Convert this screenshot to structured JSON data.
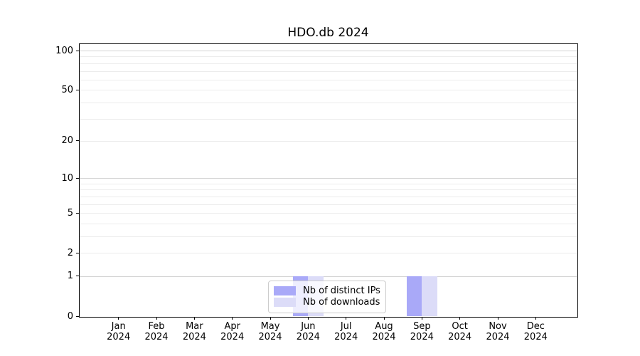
{
  "chart_data": {
    "type": "bar",
    "title": "HDO.db 2024",
    "categories": [
      "Jan",
      "Feb",
      "Mar",
      "Apr",
      "May",
      "Jun",
      "Jul",
      "Aug",
      "Sep",
      "Oct",
      "Nov",
      "Dec"
    ],
    "category_year": "2024",
    "series": [
      {
        "name": "Nb of distinct IPs",
        "color": "#a9a9f8",
        "values": [
          0,
          0,
          0,
          0,
          0,
          1,
          0,
          0,
          1,
          0,
          0,
          0
        ]
      },
      {
        "name": "Nb of downloads",
        "color": "#dcdcf8",
        "values": [
          0,
          0,
          0,
          0,
          0,
          1,
          0,
          0,
          1,
          0,
          0,
          0
        ]
      }
    ],
    "xlabel": "",
    "ylabel": "",
    "yscale": "log1p",
    "ylim": [
      0,
      112
    ],
    "yticks": [
      0,
      1,
      2,
      5,
      10,
      20,
      50,
      100
    ],
    "ygrid_strong": [
      1,
      10,
      100
    ],
    "ygrid_light": [
      2,
      5,
      20,
      50
    ],
    "yticks_minor": [
      3,
      4,
      6,
      7,
      8,
      9,
      30,
      40,
      60,
      70,
      80,
      90
    ],
    "grid": "horizontal",
    "legend": {
      "position": "lower-center",
      "entries": [
        "Nb of distinct IPs",
        "Nb of downloads"
      ]
    }
  },
  "colors": {
    "background": "#ffffff",
    "axis": "#000000",
    "grid_strong": "#d4d4d4",
    "grid_light": "#ececec",
    "legend_border": "#cccccc",
    "text": "#000000"
  }
}
